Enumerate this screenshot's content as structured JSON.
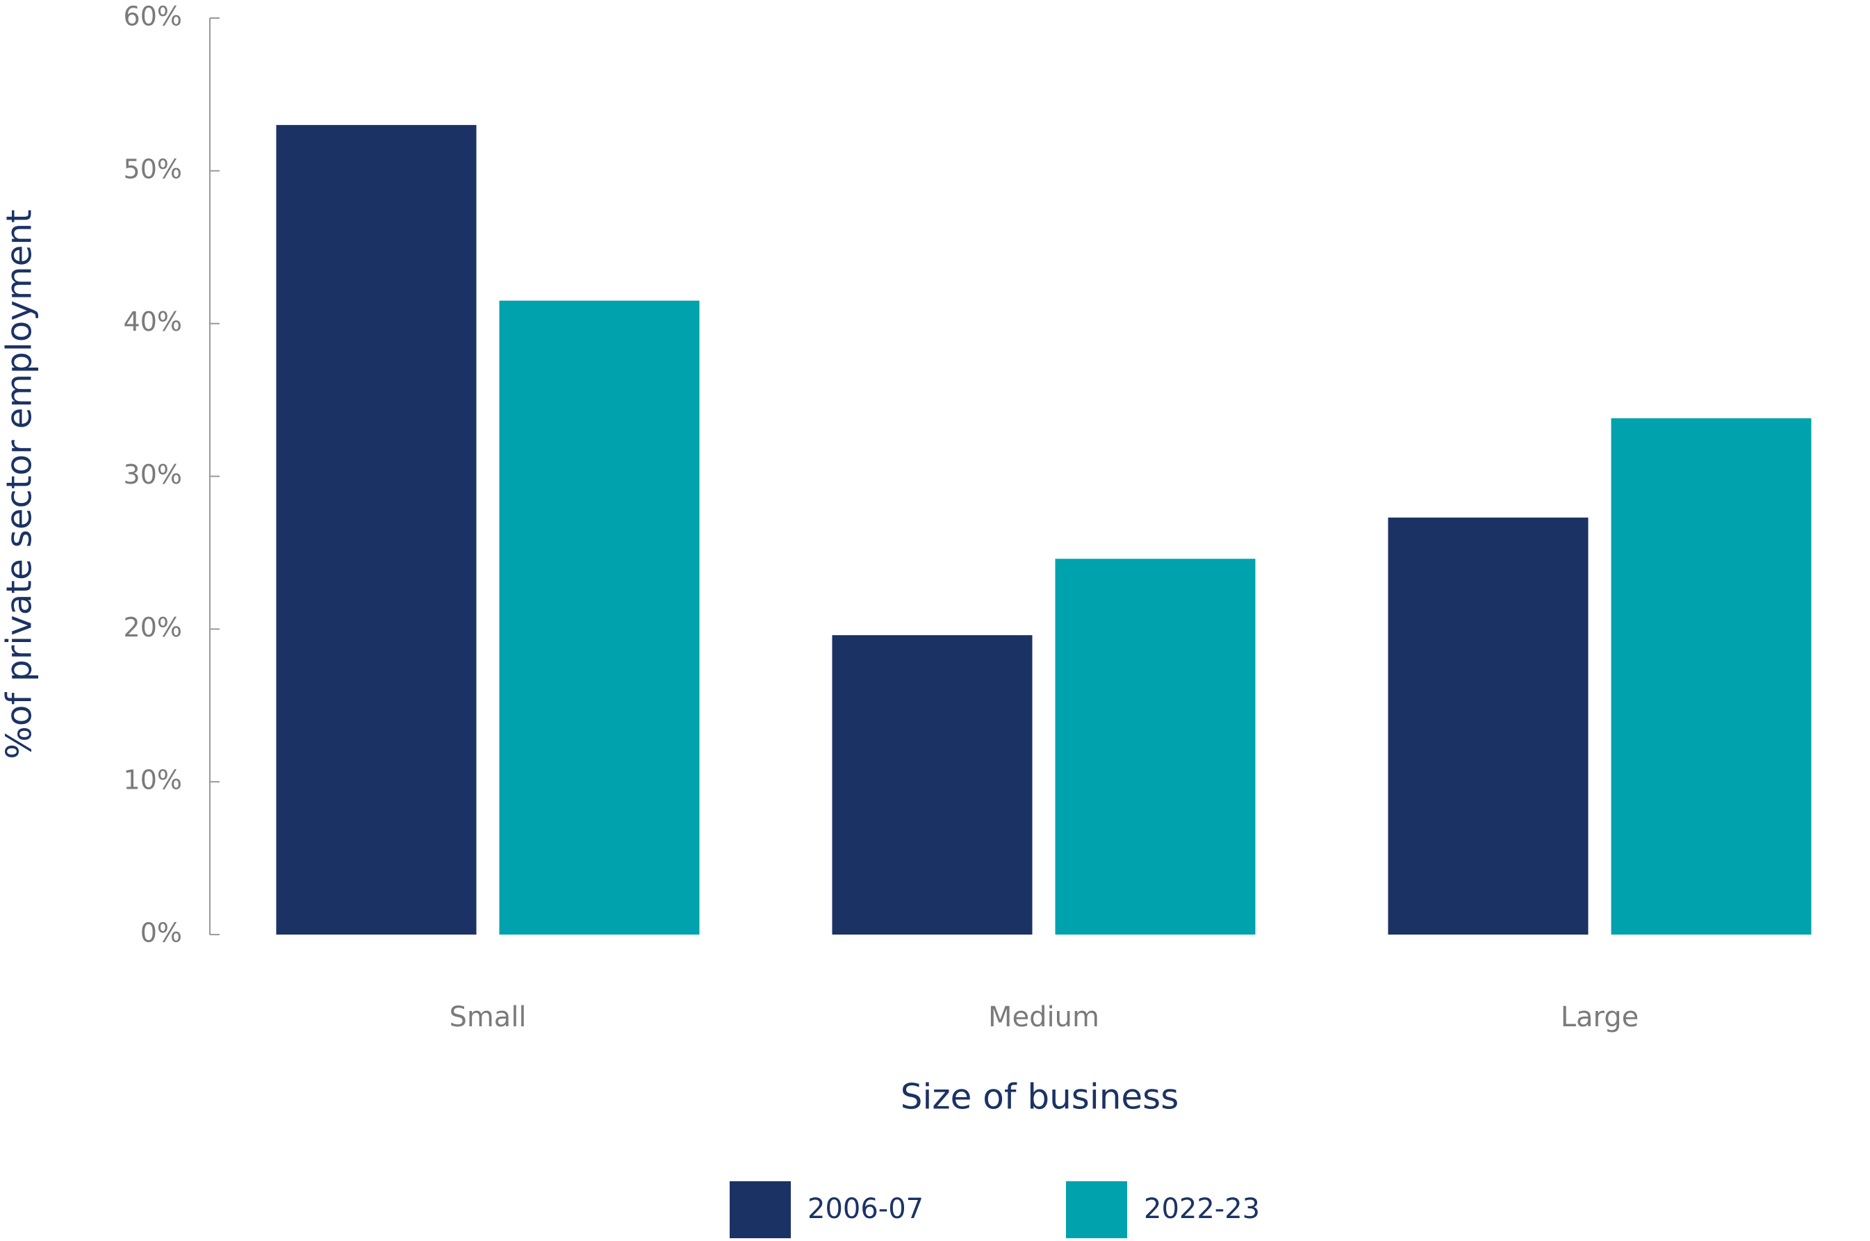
{
  "chart_data": {
    "type": "bar",
    "x_label": "Size of business",
    "y_label": "%of private sector employment",
    "categories": [
      "Small",
      "Medium",
      "Large"
    ],
    "series": [
      {
        "name": "2006-07",
        "color": "#1b3264",
        "values": [
          53.0,
          19.6,
          27.3
        ]
      },
      {
        "name": "2022-23",
        "color": "#00a2ad",
        "values": [
          41.5,
          24.6,
          33.8
        ]
      }
    ],
    "ylim": [
      0,
      60
    ],
    "yticks": [
      {
        "value": 0,
        "label": "0%"
      },
      {
        "value": 10,
        "label": "10%"
      },
      {
        "value": 20,
        "label": "20%"
      },
      {
        "value": 30,
        "label": "30%"
      },
      {
        "value": 40,
        "label": "40%"
      },
      {
        "value": 50,
        "label": "50%"
      },
      {
        "value": 60,
        "label": "60%"
      }
    ],
    "grid": false,
    "legend": "bottom"
  }
}
